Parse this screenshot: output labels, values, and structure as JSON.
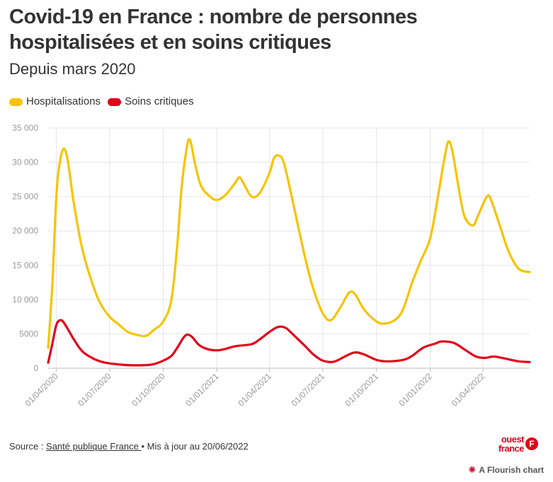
{
  "header": {
    "title": "Covid-19 en France : nombre de personnes hospitalisées et en soins critiques",
    "subtitle": "Depuis mars 2020"
  },
  "legend": [
    {
      "label": "Hospitalisations",
      "color": "#f5c400"
    },
    {
      "label": "Soins critiques",
      "color": "#e2001a"
    }
  ],
  "footer": {
    "source_prefix": "Source : ",
    "source_link": "Santé publique France ",
    "updated": "• Mis à jour au 20/06/2022",
    "logo_text_1": "ouest",
    "logo_text_2": "france",
    "flourish": "A Flourish chart"
  },
  "chart_data": {
    "type": "line",
    "x_type": "date",
    "xlim": [
      "2020-03-18",
      "2022-06-20"
    ],
    "ylim": [
      0,
      35000
    ],
    "y_ticks": [
      0,
      5000,
      10000,
      15000,
      20000,
      25000,
      30000,
      35000
    ],
    "y_tick_labels": [
      "0",
      "5000",
      "10 000",
      "15 000",
      "20 000",
      "25 000",
      "30 000",
      "35 000"
    ],
    "x_ticks": [
      "2020-04-01",
      "2020-07-01",
      "2020-10-01",
      "2021-01-01",
      "2021-04-01",
      "2021-07-01",
      "2021-10-01",
      "2022-01-01",
      "2022-04-01"
    ],
    "x_tick_labels": [
      "01/04/2020",
      "01/07/2020",
      "01/10/2020",
      "01/01/2021",
      "01/04/2021",
      "01/07/2021",
      "01/10/2021",
      "01/01/2022",
      "01/04/2022"
    ],
    "grid": true,
    "legend_position": "top-left",
    "series": [
      {
        "name": "Hospitalisations",
        "color": "#f5c400",
        "points": [
          [
            "2020-03-18",
            3000
          ],
          [
            "2020-03-25",
            12000
          ],
          [
            "2020-04-01",
            25000
          ],
          [
            "2020-04-07",
            30000
          ],
          [
            "2020-04-14",
            32000
          ],
          [
            "2020-04-21",
            30000
          ],
          [
            "2020-05-01",
            24000
          ],
          [
            "2020-05-15",
            17500
          ],
          [
            "2020-06-01",
            12500
          ],
          [
            "2020-06-15",
            9500
          ],
          [
            "2020-07-01",
            7500
          ],
          [
            "2020-07-15",
            6500
          ],
          [
            "2020-08-01",
            5300
          ],
          [
            "2020-08-15",
            4900
          ],
          [
            "2020-09-01",
            4700
          ],
          [
            "2020-09-15",
            5600
          ],
          [
            "2020-10-01",
            6800
          ],
          [
            "2020-10-15",
            10000
          ],
          [
            "2020-10-25",
            18000
          ],
          [
            "2020-11-01",
            26000
          ],
          [
            "2020-11-10",
            32000
          ],
          [
            "2020-11-16",
            33200
          ],
          [
            "2020-11-25",
            29500
          ],
          [
            "2020-12-05",
            26500
          ],
          [
            "2020-12-20",
            25000
          ],
          [
            "2021-01-01",
            24500
          ],
          [
            "2021-01-15",
            25200
          ],
          [
            "2021-02-01",
            27000
          ],
          [
            "2021-02-08",
            27800
          ],
          [
            "2021-02-15",
            27000
          ],
          [
            "2021-03-01",
            25000
          ],
          [
            "2021-03-15",
            25500
          ],
          [
            "2021-04-01",
            28500
          ],
          [
            "2021-04-08",
            30500
          ],
          [
            "2021-04-15",
            31000
          ],
          [
            "2021-04-25",
            30000
          ],
          [
            "2021-05-10",
            24500
          ],
          [
            "2021-06-01",
            16000
          ],
          [
            "2021-06-15",
            11500
          ],
          [
            "2021-07-01",
            8000
          ],
          [
            "2021-07-15",
            7000
          ],
          [
            "2021-08-01",
            9000
          ],
          [
            "2021-08-15",
            11000
          ],
          [
            "2021-08-25",
            10800
          ],
          [
            "2021-09-10",
            8500
          ],
          [
            "2021-10-01",
            6800
          ],
          [
            "2021-10-15",
            6500
          ],
          [
            "2021-11-01",
            7000
          ],
          [
            "2021-11-15",
            8500
          ],
          [
            "2021-12-01",
            12500
          ],
          [
            "2021-12-15",
            15500
          ],
          [
            "2022-01-01",
            19000
          ],
          [
            "2022-01-15",
            25500
          ],
          [
            "2022-01-25",
            30500
          ],
          [
            "2022-02-01",
            33000
          ],
          [
            "2022-02-08",
            31500
          ],
          [
            "2022-02-20",
            25500
          ],
          [
            "2022-03-01",
            22000
          ],
          [
            "2022-03-15",
            20800
          ],
          [
            "2022-03-25",
            22500
          ],
          [
            "2022-04-08",
            25000
          ],
          [
            "2022-04-15",
            24500
          ],
          [
            "2022-05-01",
            20500
          ],
          [
            "2022-05-15",
            17000
          ],
          [
            "2022-06-01",
            14500
          ],
          [
            "2022-06-20",
            14000
          ]
        ]
      },
      {
        "name": "Soins critiques",
        "color": "#e2001a",
        "points": [
          [
            "2020-03-18",
            800
          ],
          [
            "2020-03-25",
            3500
          ],
          [
            "2020-04-01",
            6300
          ],
          [
            "2020-04-08",
            7000
          ],
          [
            "2020-04-15",
            6500
          ],
          [
            "2020-05-01",
            4200
          ],
          [
            "2020-05-15",
            2500
          ],
          [
            "2020-06-01",
            1500
          ],
          [
            "2020-06-15",
            1000
          ],
          [
            "2020-07-01",
            700
          ],
          [
            "2020-08-01",
            450
          ],
          [
            "2020-09-01",
            450
          ],
          [
            "2020-09-15",
            600
          ],
          [
            "2020-10-01",
            1100
          ],
          [
            "2020-10-15",
            1800
          ],
          [
            "2020-10-25",
            3000
          ],
          [
            "2020-11-05",
            4500
          ],
          [
            "2020-11-12",
            4900
          ],
          [
            "2020-11-20",
            4500
          ],
          [
            "2020-12-01",
            3400
          ],
          [
            "2020-12-15",
            2800
          ],
          [
            "2021-01-01",
            2600
          ],
          [
            "2021-01-15",
            2800
          ],
          [
            "2021-02-01",
            3200
          ],
          [
            "2021-03-01",
            3500
          ],
          [
            "2021-03-15",
            4200
          ],
          [
            "2021-04-01",
            5300
          ],
          [
            "2021-04-15",
            6000
          ],
          [
            "2021-04-28",
            5900
          ],
          [
            "2021-05-10",
            5000
          ],
          [
            "2021-06-01",
            3200
          ],
          [
            "2021-06-15",
            2000
          ],
          [
            "2021-07-01",
            1100
          ],
          [
            "2021-07-20",
            950
          ],
          [
            "2021-08-10",
            1800
          ],
          [
            "2021-08-25",
            2300
          ],
          [
            "2021-09-10",
            2000
          ],
          [
            "2021-10-01",
            1200
          ],
          [
            "2021-10-20",
            1000
          ],
          [
            "2021-11-15",
            1200
          ],
          [
            "2021-12-01",
            1800
          ],
          [
            "2021-12-20",
            3000
          ],
          [
            "2022-01-10",
            3600
          ],
          [
            "2022-01-20",
            3900
          ],
          [
            "2022-02-10",
            3700
          ],
          [
            "2022-03-01",
            2700
          ],
          [
            "2022-03-20",
            1700
          ],
          [
            "2022-04-05",
            1500
          ],
          [
            "2022-04-20",
            1700
          ],
          [
            "2022-05-15",
            1300
          ],
          [
            "2022-06-01",
            1000
          ],
          [
            "2022-06-20",
            900
          ]
        ]
      }
    ]
  }
}
